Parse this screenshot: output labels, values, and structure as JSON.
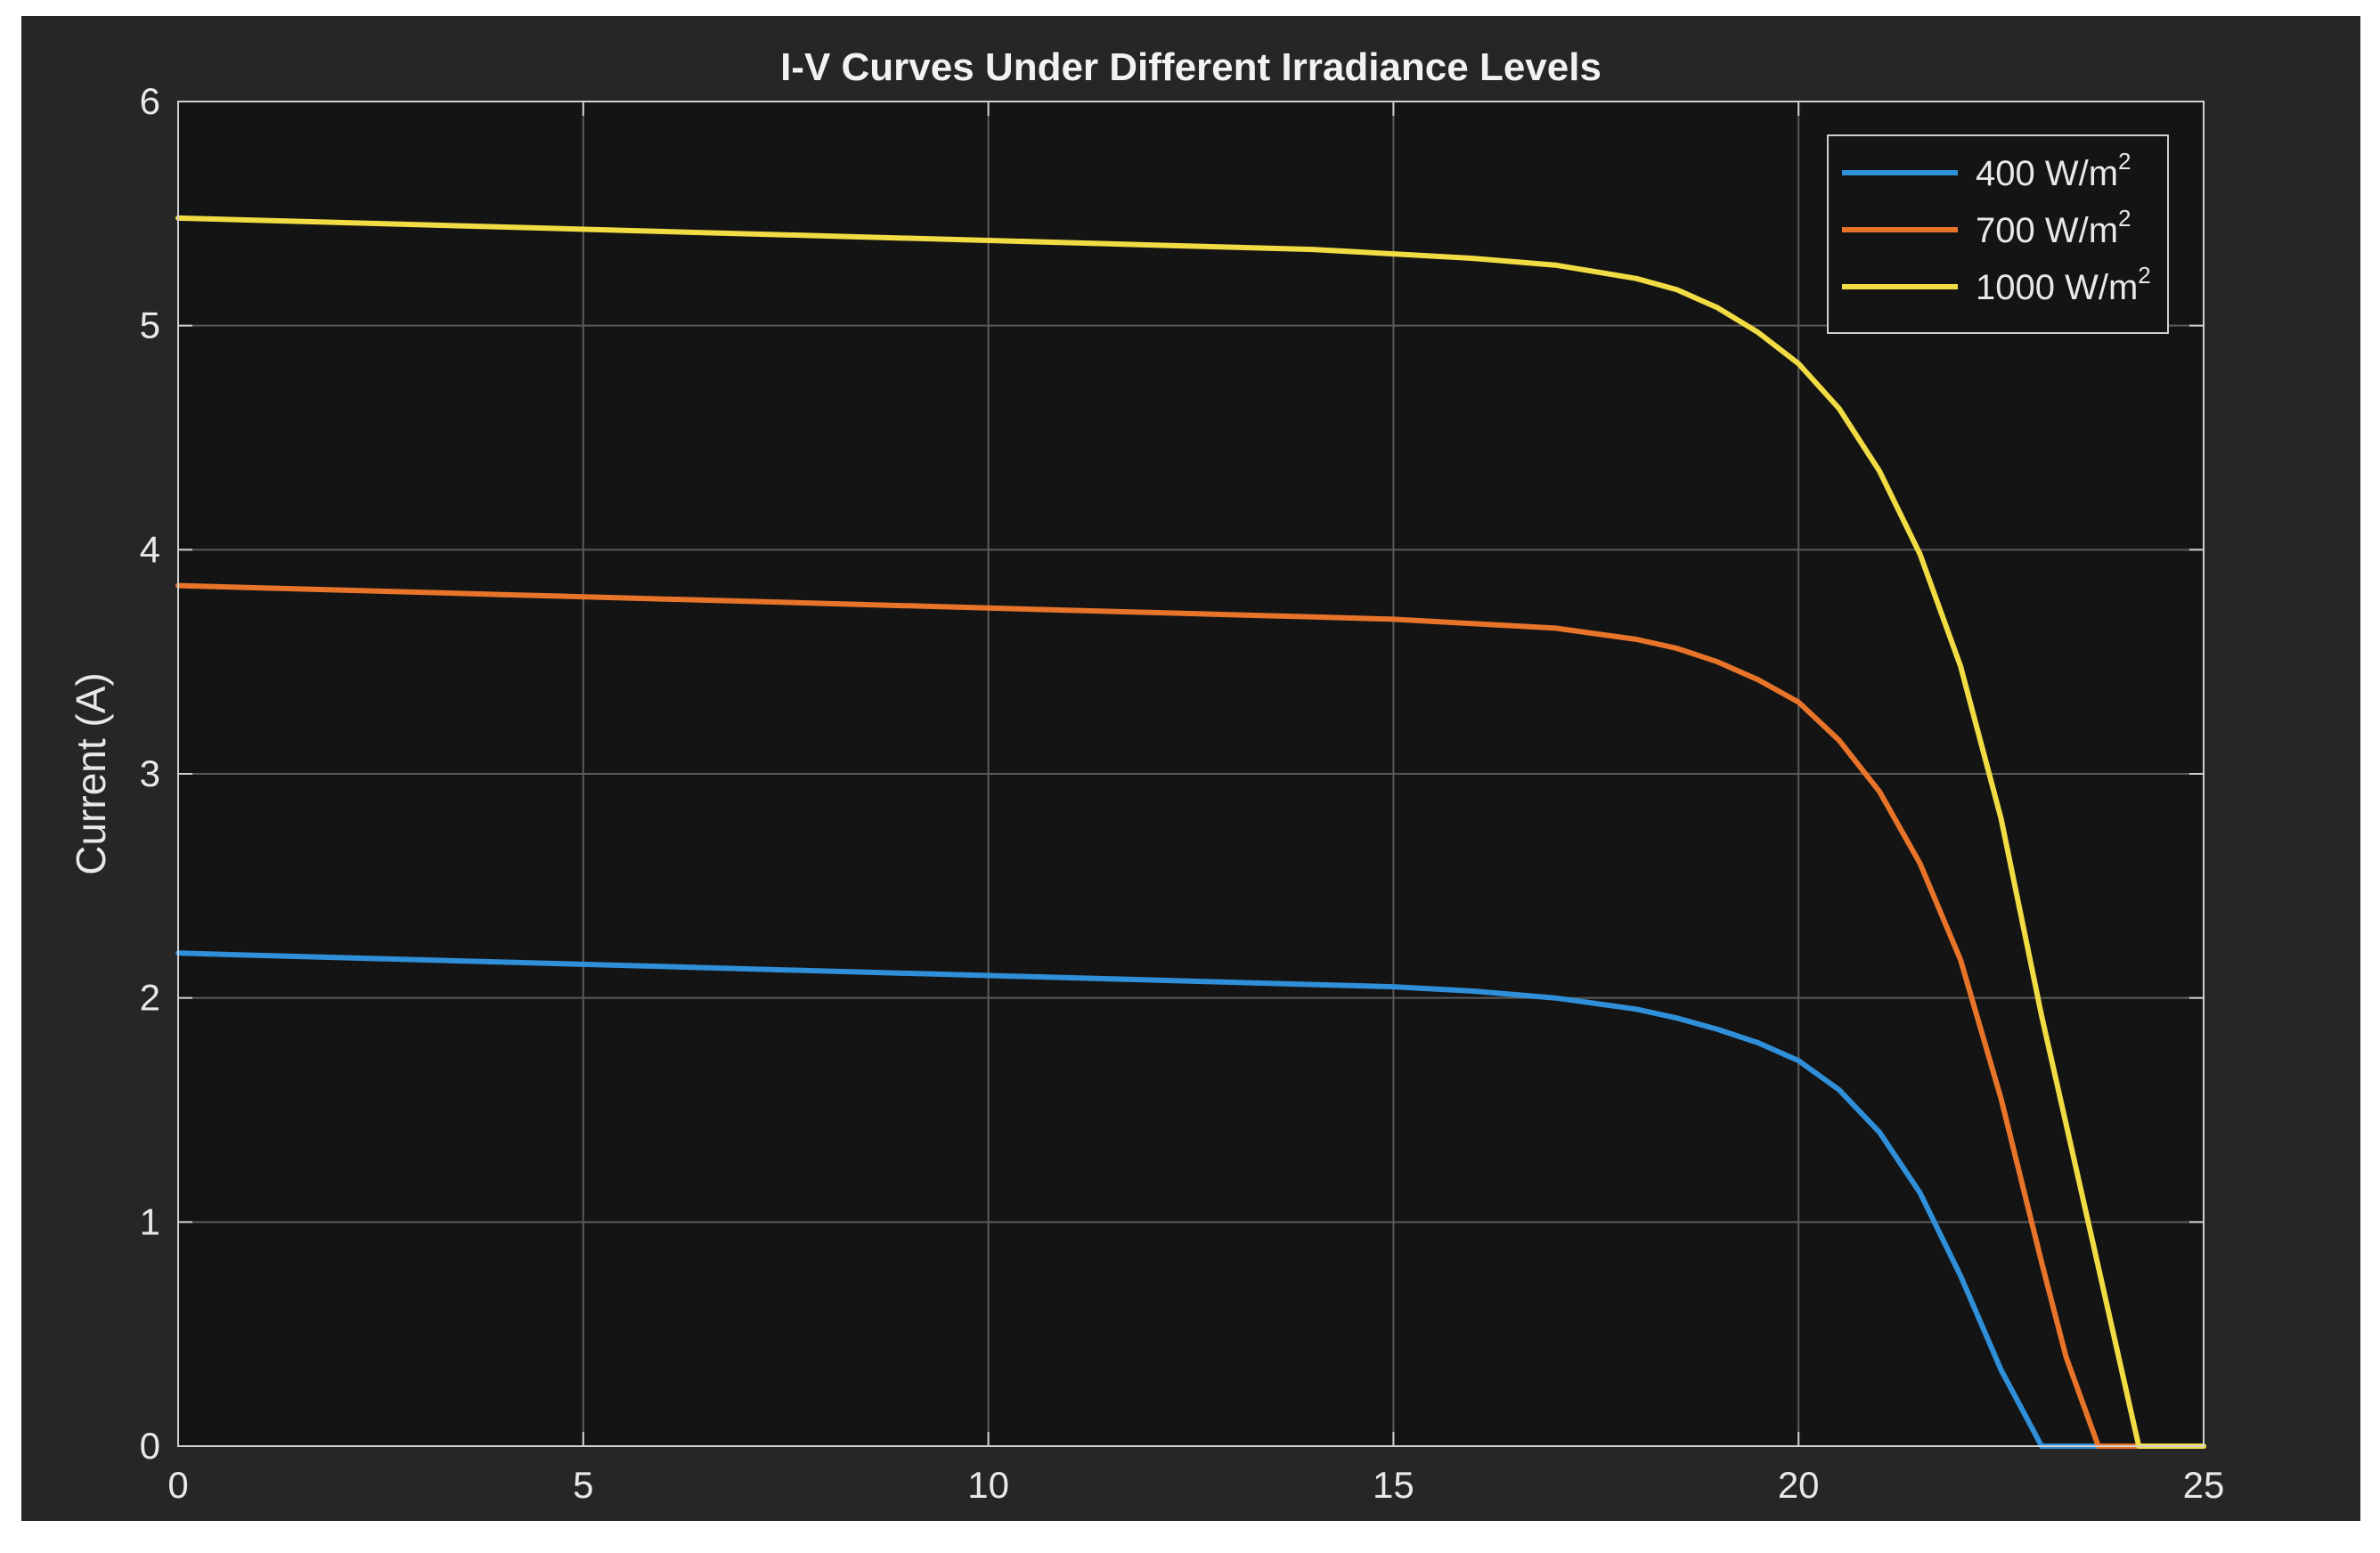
{
  "chart_data": {
    "type": "line",
    "title": "I-V Curves Under Different Irradiance Levels",
    "xlabel": "",
    "ylabel": "Current (A)",
    "xlim": [
      0,
      25
    ],
    "ylim": [
      0,
      6
    ],
    "xticks": [
      0,
      5,
      10,
      15,
      20,
      25
    ],
    "yticks": [
      0,
      1,
      2,
      3,
      4,
      5,
      6
    ],
    "grid": true,
    "legend_position": "top-right",
    "series": [
      {
        "name": "400 W/m",
        "name_sup": "2",
        "color": "#2f8fd8",
        "x": [
          0,
          2,
          4,
          6,
          8,
          10,
          12,
          14,
          15,
          16,
          17,
          18,
          18.5,
          19,
          19.5,
          20,
          20.5,
          21,
          21.5,
          22,
          22.5,
          23,
          23.3,
          24,
          25
        ],
        "y": [
          2.2,
          2.18,
          2.16,
          2.14,
          2.12,
          2.1,
          2.08,
          2.06,
          2.05,
          2.03,
          2.0,
          1.95,
          1.91,
          1.86,
          1.8,
          1.72,
          1.59,
          1.4,
          1.13,
          0.76,
          0.34,
          0.0,
          0.0,
          0.0,
          0.0
        ]
      },
      {
        "name": "700 W/m",
        "name_sup": "2",
        "color": "#e8742a",
        "x": [
          0,
          2,
          4,
          6,
          8,
          10,
          12,
          14,
          15,
          16,
          17,
          18,
          18.5,
          19,
          19.5,
          20,
          20.5,
          21,
          21.5,
          22,
          22.5,
          23,
          23.3,
          23.7,
          24,
          25
        ],
        "y": [
          3.84,
          3.82,
          3.8,
          3.78,
          3.76,
          3.74,
          3.72,
          3.7,
          3.69,
          3.67,
          3.65,
          3.6,
          3.56,
          3.5,
          3.42,
          3.32,
          3.15,
          2.92,
          2.6,
          2.17,
          1.55,
          0.82,
          0.4,
          0.0,
          0.0,
          0.0
        ]
      },
      {
        "name": "1000 W/m",
        "name_sup": "2",
        "color": "#f2dc44",
        "x": [
          0,
          2,
          4,
          6,
          8,
          10,
          12,
          14,
          15,
          16,
          17,
          18,
          18.5,
          19,
          19.5,
          20,
          20.5,
          21,
          21.5,
          22,
          22.5,
          23,
          23.5,
          24.2,
          25
        ],
        "y": [
          5.48,
          5.46,
          5.44,
          5.42,
          5.4,
          5.38,
          5.36,
          5.34,
          5.32,
          5.3,
          5.27,
          5.21,
          5.16,
          5.08,
          4.97,
          4.83,
          4.63,
          4.35,
          3.98,
          3.48,
          2.8,
          1.92,
          1.12,
          0.0,
          0.0
        ]
      }
    ]
  }
}
